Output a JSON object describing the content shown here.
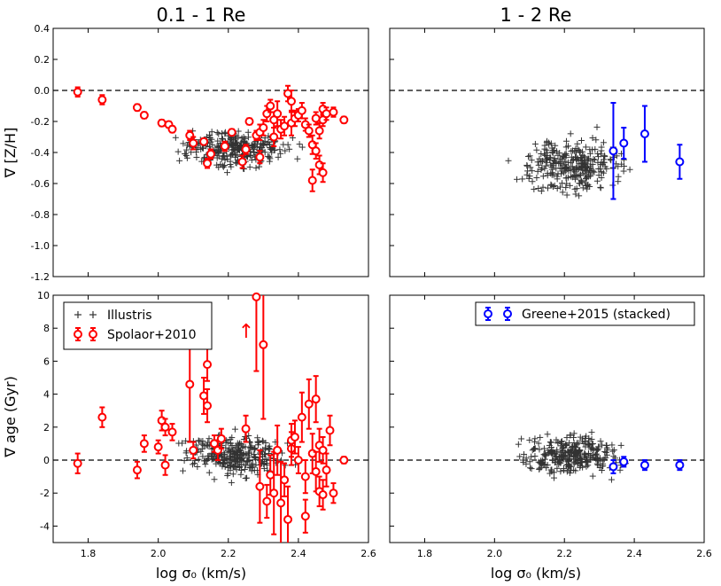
{
  "chart_data": [
    {
      "type": "scatter",
      "title": "0.1 - 1 Re",
      "ylabel": "∇ [Z/H]",
      "xlim": [
        1.7,
        2.6
      ],
      "ylim": [
        -1.2,
        0.4
      ],
      "yticks": [
        0.4,
        0.2,
        "0.0",
        -0.2,
        -0.4,
        -0.6,
        -0.8,
        "-1.0",
        -1.2
      ],
      "zero_line": true,
      "series": [
        {
          "name": "Spolaor+2010",
          "color": "#ff0000",
          "marker": "circle-errorbar",
          "points": [
            [
              1.77,
              -0.01,
              0.03
            ],
            [
              1.84,
              -0.06,
              0.03
            ],
            [
              1.94,
              -0.11,
              0.02
            ],
            [
              1.96,
              -0.16,
              0.02
            ],
            [
              2.01,
              -0.21,
              0.02
            ],
            [
              2.03,
              -0.22,
              0.02
            ],
            [
              2.04,
              -0.25,
              0.02
            ],
            [
              2.09,
              -0.29,
              0.03
            ],
            [
              2.1,
              -0.34,
              0.04
            ],
            [
              2.13,
              -0.33,
              0.02
            ],
            [
              2.14,
              -0.47,
              0.03
            ],
            [
              2.15,
              -0.41,
              0.03
            ],
            [
              2.19,
              -0.36,
              0.03
            ],
            [
              2.21,
              -0.27,
              0.02
            ],
            [
              2.24,
              -0.46,
              0.04
            ],
            [
              2.25,
              -0.38,
              0.03
            ],
            [
              2.26,
              -0.2,
              0.02
            ],
            [
              2.28,
              -0.29,
              0.03
            ],
            [
              2.29,
              -0.43,
              0.04
            ],
            [
              2.29,
              -0.27,
              0.05
            ],
            [
              2.3,
              -0.24,
              0.05
            ],
            [
              2.31,
              -0.15,
              0.05
            ],
            [
              2.32,
              -0.1,
              0.04
            ],
            [
              2.33,
              -0.3,
              0.06
            ],
            [
              2.33,
              -0.19,
              0.05
            ],
            [
              2.34,
              -0.15,
              0.08
            ],
            [
              2.35,
              -0.25,
              0.06
            ],
            [
              2.36,
              -0.23,
              0.06
            ],
            [
              2.37,
              -0.02,
              0.05
            ],
            [
              2.38,
              -0.07,
              0.07
            ],
            [
              2.38,
              -0.21,
              0.08
            ],
            [
              2.39,
              -0.18,
              0.05
            ],
            [
              2.4,
              -0.16,
              0.04
            ],
            [
              2.41,
              -0.13,
              0.05
            ],
            [
              2.42,
              -0.22,
              0.04
            ],
            [
              2.43,
              -0.26,
              0.04
            ],
            [
              2.44,
              -0.35,
              0.06
            ],
            [
              2.44,
              -0.58,
              0.07
            ],
            [
              2.45,
              -0.39,
              0.05
            ],
            [
              2.45,
              -0.18,
              0.04
            ],
            [
              2.46,
              -0.48,
              0.06
            ],
            [
              2.46,
              -0.26,
              0.05
            ],
            [
              2.47,
              -0.53,
              0.06
            ],
            [
              2.47,
              -0.12,
              0.04
            ],
            [
              2.47,
              -0.19,
              0.04
            ],
            [
              2.48,
              -0.15,
              0.04
            ],
            [
              2.5,
              -0.14,
              0.03
            ],
            [
              2.53,
              -0.19,
              0.02
            ]
          ]
        }
      ]
    },
    {
      "type": "scatter",
      "title": "1 - 2 Re",
      "xlim": [
        1.7,
        2.6
      ],
      "ylim": [
        -1.2,
        0.4
      ],
      "zero_line": true,
      "series": [
        {
          "name": "Greene+2015 (stacked)",
          "color": "#0000ff",
          "marker": "circle-errorbar",
          "points": [
            [
              2.34,
              -0.39,
              0.31
            ],
            [
              2.37,
              -0.34,
              0.1
            ],
            [
              2.43,
              -0.28,
              0.18
            ],
            [
              2.53,
              -0.46,
              0.11
            ]
          ]
        }
      ]
    },
    {
      "type": "scatter",
      "xlabel": "log σ₀ (km/s)",
      "ylabel": "∇ age (Gyr)",
      "xlim": [
        1.7,
        2.6
      ],
      "ylim": [
        -5,
        10
      ],
      "xticks": [
        1.8,
        2.0,
        2.2,
        2.4,
        2.6
      ],
      "yticks": [
        10,
        8,
        6,
        4,
        2,
        0,
        -2,
        -4
      ],
      "zero_line": true,
      "legend": {
        "location": "top-left",
        "entries": [
          "Illustris",
          "Spolaor+2010"
        ]
      },
      "annotation": "↑",
      "series": [
        {
          "name": "Spolaor+2010",
          "color": "#ff0000",
          "marker": "circle-errorbar",
          "points": [
            [
              1.77,
              -0.2,
              0.6
            ],
            [
              1.84,
              2.6,
              0.6
            ],
            [
              1.94,
              -0.6,
              0.5
            ],
            [
              1.96,
              1.0,
              0.5
            ],
            [
              2.0,
              0.8,
              0.4
            ],
            [
              2.01,
              2.4,
              0.6
            ],
            [
              2.02,
              2.0,
              0.5
            ],
            [
              2.02,
              -0.3,
              0.6
            ],
            [
              2.04,
              1.7,
              0.5
            ],
            [
              2.09,
              4.6,
              3.5
            ],
            [
              2.1,
              0.6,
              0.5
            ],
            [
              2.13,
              3.9,
              1.1
            ],
            [
              2.14,
              5.8,
              1.0
            ],
            [
              2.14,
              3.3,
              1.0
            ],
            [
              2.16,
              1.0,
              0.5
            ],
            [
              2.17,
              0.6,
              0.6
            ],
            [
              2.18,
              1.3,
              0.6
            ],
            [
              2.25,
              1.9,
              0.8
            ],
            [
              2.28,
              9.9,
              4.5
            ],
            [
              2.29,
              -1.6,
              2.2
            ],
            [
              2.3,
              7.0,
              4.5
            ],
            [
              2.31,
              -2.5,
              1.0
            ],
            [
              2.32,
              -0.9,
              1.2
            ],
            [
              2.33,
              -2.0,
              2.5
            ],
            [
              2.34,
              0.6,
              1.5
            ],
            [
              2.35,
              -2.6,
              2.5
            ],
            [
              2.36,
              -1.2,
              1.0
            ],
            [
              2.37,
              -3.6,
              2.0
            ],
            [
              2.38,
              0.7,
              1.0
            ],
            [
              2.38,
              1.2,
              1.0
            ],
            [
              2.39,
              1.4,
              1.0
            ],
            [
              2.4,
              0.0,
              0.8
            ],
            [
              2.41,
              2.6,
              1.5
            ],
            [
              2.42,
              -1.0,
              1.0
            ],
            [
              2.42,
              -3.4,
              1.0
            ],
            [
              2.43,
              3.4,
              1.5
            ],
            [
              2.44,
              0.4,
              1.2
            ],
            [
              2.45,
              3.7,
              1.4
            ],
            [
              2.45,
              -0.7,
              1.2
            ],
            [
              2.46,
              -1.9,
              0.9
            ],
            [
              2.46,
              0.9,
              1.0
            ],
            [
              2.47,
              -2.1,
              0.9
            ],
            [
              2.47,
              0.6,
              0.8
            ],
            [
              2.48,
              -0.6,
              1.0
            ],
            [
              2.49,
              1.8,
              0.9
            ],
            [
              2.5,
              -2.0,
              0.6
            ],
            [
              2.53,
              0.0,
              0.2
            ]
          ]
        }
      ]
    },
    {
      "type": "scatter",
      "xlabel": "log σ₀ (km/s)",
      "xlim": [
        1.7,
        2.6
      ],
      "ylim": [
        -5,
        10
      ],
      "xticks": [
        1.8,
        2.0,
        2.2,
        2.4,
        2.6
      ],
      "zero_line": true,
      "legend": {
        "location": "top-right",
        "entries": [
          "Greene+2015 (stacked)"
        ]
      },
      "series": [
        {
          "name": "Greene+2015 (stacked)",
          "color": "#0000ff",
          "marker": "circle-errorbar",
          "points": [
            [
              2.34,
              -0.4,
              0.4
            ],
            [
              2.37,
              -0.1,
              0.3
            ],
            [
              2.43,
              -0.3,
              0.3
            ],
            [
              2.53,
              -0.3,
              0.3
            ]
          ]
        }
      ]
    }
  ],
  "illustris": {
    "name": "Illustris",
    "color": "#333333",
    "marker": "plus"
  }
}
